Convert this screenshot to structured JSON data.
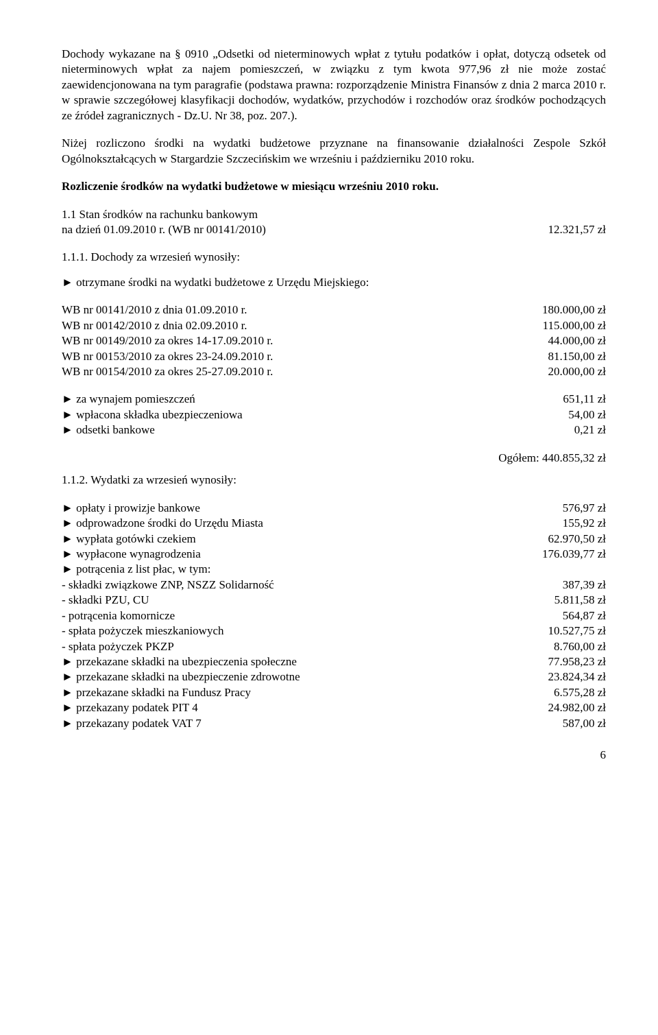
{
  "para1": "Dochody wykazane na § 0910 „Odsetki od nieterminowych wpłat z tytułu podatków i opłat, dotyczą  odsetek od nieterminowych wpłat za najem pomieszczeń, w związku z tym kwota 977,96 zł nie może zostać zaewidencjonowana na tym paragrafie (podstawa prawna: rozporządzenie Ministra Finansów z dnia 2 marca 2010 r. w sprawie szczegółowej klasyfikacji dochodów, wydatków, przychodów i rozchodów oraz środków pochodzących ze źródeł zagranicznych  - Dz.U. Nr 38, poz. 207.).",
  "para2": "Niżej rozliczono środki na wydatki budżetowe przyznane na finansowanie działalności Zespole Szkół Ogólnokształcących w Stargardzie Szczecińskim we wrześniu i październiku 2010 roku.",
  "heading_settlement": "Rozliczenie środków na wydatki budżetowe w miesiącu wrześniu 2010 roku.",
  "s11_line1": "1.1 Stan środków na rachunku bankowym",
  "s11_line2_left": "na dzień 01.09.2010 r. (WB nr 00141/2010)",
  "s11_line2_right": "12.321,57 zł",
  "s111_title": "1.1.1. Dochody za wrzesień wynosiły:",
  "s111_sub": "► otrzymane środki na wydatki budżetowe z Urzędu Miejskiego:",
  "wb": [
    {
      "l": "WB nr 00141/2010 z dnia 01.09.2010 r.",
      "r": "180.000,00 zł"
    },
    {
      "l": "WB nr  00142/2010 z dnia 02.09.2010 r.",
      "r": "115.000,00 zł"
    },
    {
      "l": "WB nr  00149/2010 za okres 14-17.09.2010 r.",
      "r": "44.000,00 zł"
    },
    {
      "l": "WB nr  00153/2010 za okres 23-24.09.2010 r.",
      "r": "81.150,00 zł"
    },
    {
      "l": "WB nr  00154/2010 za okres 25-27.09.2010 r.",
      "r": "20.000,00 zł"
    }
  ],
  "extras": [
    {
      "l": "► za wynajem pomieszczeń",
      "r": "651,11 zł"
    },
    {
      "l": "► wpłacona składka ubezpieczeniowa",
      "r": "54,00 zł"
    },
    {
      "l": "► odsetki bankowe",
      "r": "0,21 zł"
    }
  ],
  "total_label": "Ogółem: 440.855,32 zł",
  "s112_title": "1.1.2. Wydatki za wrzesień wynosiły:",
  "expenses": [
    {
      "l": "► opłaty i prowizje bankowe",
      "r": "576,97 zł"
    },
    {
      "l": "► odprowadzone środki do Urzędu Miasta",
      "r": "155,92 zł"
    },
    {
      "l": "► wypłata gotówki czekiem",
      "r": "62.970,50 zł"
    },
    {
      "l": "► wypłacone wynagrodzenia",
      "r": "176.039,77 zł"
    },
    {
      "l": "► potrącenia z list płac, w tym:",
      "r": ""
    },
    {
      "l": "- składki związkowe ZNP, NSZZ Solidarność",
      "r": "387,39 zł"
    },
    {
      "l": "- składki PZU, CU",
      "r": "5.811,58 zł"
    },
    {
      "l": "- potrącenia komornicze",
      "r": "564,87 zł"
    },
    {
      "l": "- spłata pożyczek mieszkaniowych",
      "r": "10.527,75 zł"
    },
    {
      "l": "- spłata pożyczek PKZP",
      "r": "8.760,00 zł"
    },
    {
      "l": "► przekazane składki na ubezpieczenia społeczne",
      "r": "77.958,23 zł"
    },
    {
      "l": "► przekazane składki na ubezpieczenie zdrowotne",
      "r": "23.824,34 zł"
    },
    {
      "l": "► przekazane składki na Fundusz Pracy",
      "r": "6.575,28 zł"
    },
    {
      "l": "► przekazany podatek PIT 4",
      "r": "24.982,00 zł"
    },
    {
      "l": "► przekazany podatek VAT 7",
      "r": "587,00 zł"
    }
  ],
  "page_number": "6"
}
